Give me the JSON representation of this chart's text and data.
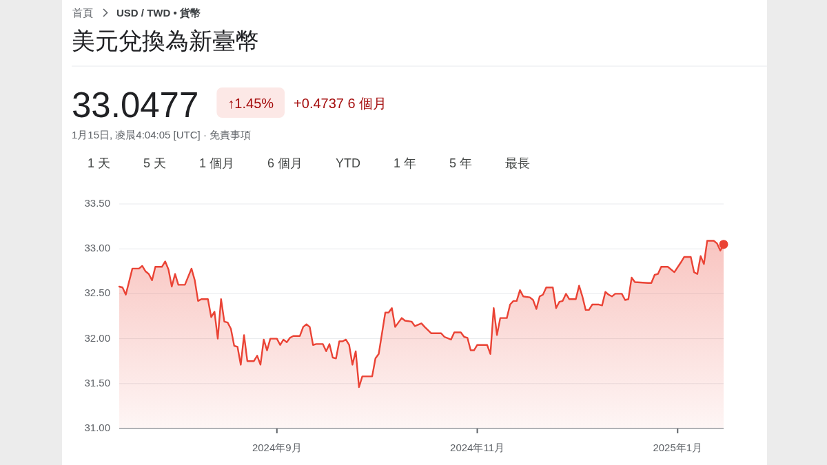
{
  "chart_data": {
    "type": "area",
    "title": "美元兌換為新臺幣",
    "subtitle": "33.0477",
    "annotations": [
      "首頁",
      "USD / TWD • 貨幣",
      "↑1.45%",
      "+0.4737 6 個月",
      "1月15日, 凌晨4:04:05 [UTC] · 免責事項",
      "1 天",
      "5 天",
      "1 個月",
      "6 個月",
      "YTD",
      "1 年",
      "5 年",
      "最長"
    ],
    "x": [
      "2024-07-15",
      "2024-07-16",
      "2024-07-17",
      "2024-07-19",
      "2024-07-21",
      "2024-07-22",
      "2024-07-23",
      "2024-07-24",
      "2024-07-25",
      "2024-07-26",
      "2024-07-28",
      "2024-07-29",
      "2024-07-30",
      "2024-07-31",
      "2024-08-01",
      "2024-08-02",
      "2024-08-04",
      "2024-08-06",
      "2024-08-07",
      "2024-08-08",
      "2024-08-09",
      "2024-08-11",
      "2024-08-12",
      "2024-08-13",
      "2024-08-14",
      "2024-08-15",
      "2024-08-16",
      "2024-08-17",
      "2024-08-18",
      "2024-08-19",
      "2024-08-20",
      "2024-08-21",
      "2024-08-22",
      "2024-08-23",
      "2024-08-25",
      "2024-08-26",
      "2024-08-27",
      "2024-08-28",
      "2024-08-29",
      "2024-08-30",
      "2024-09-01",
      "2024-09-02",
      "2024-09-03",
      "2024-09-04",
      "2024-09-05",
      "2024-09-06",
      "2024-09-08",
      "2024-09-09",
      "2024-09-10",
      "2024-09-11",
      "2024-09-12",
      "2024-09-13",
      "2024-09-15",
      "2024-09-16",
      "2024-09-17",
      "2024-09-18",
      "2024-09-19",
      "2024-09-20",
      "2024-09-21",
      "2024-09-22",
      "2024-09-23",
      "2024-09-24",
      "2024-09-25",
      "2024-09-26",
      "2024-09-27",
      "2024-09-30",
      "2024-10-01",
      "2024-10-02",
      "2024-10-04",
      "2024-10-05",
      "2024-10-06",
      "2024-10-07",
      "2024-10-09",
      "2024-10-10",
      "2024-10-12",
      "2024-10-13",
      "2024-10-15",
      "2024-10-16",
      "2024-10-18",
      "2024-10-21",
      "2024-10-22",
      "2024-10-24",
      "2024-10-25",
      "2024-10-27",
      "2024-10-28",
      "2024-10-29",
      "2024-10-30",
      "2024-10-31",
      "2024-11-01",
      "2024-11-04",
      "2024-11-05",
      "2024-11-06",
      "2024-11-07",
      "2024-11-08",
      "2024-11-10",
      "2024-11-11",
      "2024-11-12",
      "2024-11-13",
      "2024-11-14",
      "2024-11-15",
      "2024-11-17",
      "2024-11-18",
      "2024-11-19",
      "2024-11-20",
      "2024-11-21",
      "2024-11-22",
      "2024-11-24",
      "2024-11-25",
      "2024-11-26",
      "2024-11-27",
      "2024-11-28",
      "2024-11-29",
      "2024-12-01",
      "2024-12-02",
      "2024-12-03",
      "2024-12-04",
      "2024-12-05",
      "2024-12-06",
      "2024-12-08",
      "2024-12-09",
      "2024-12-10",
      "2024-12-11",
      "2024-12-12",
      "2024-12-13",
      "2024-12-15",
      "2024-12-16",
      "2024-12-17",
      "2024-12-18",
      "2024-12-19",
      "2024-12-23",
      "2024-12-24",
      "2024-12-25",
      "2024-12-26",
      "2024-12-27",
      "2024-12-29",
      "2024-12-31",
      "2025-01-02",
      "2025-01-03",
      "2025-01-05",
      "2025-01-06",
      "2025-01-07",
      "2025-01-08",
      "2025-01-09",
      "2025-01-10",
      "2025-01-12",
      "2025-01-13",
      "2025-01-14",
      "2025-01-15"
    ],
    "series": [
      {
        "color": "#ea4335",
        "values": [
          32.58,
          32.57,
          32.49,
          32.78,
          32.78,
          32.81,
          32.75,
          32.72,
          32.65,
          32.8,
          32.8,
          32.86,
          32.77,
          32.58,
          32.72,
          32.6,
          32.6,
          32.78,
          32.65,
          32.42,
          32.44,
          32.44,
          32.24,
          32.3,
          32.0,
          32.44,
          32.19,
          32.18,
          32.11,
          31.92,
          31.91,
          31.71,
          32.04,
          31.75,
          31.75,
          31.81,
          31.71,
          31.99,
          31.87,
          32.0,
          32.0,
          31.93,
          31.99,
          31.96,
          32.01,
          32.03,
          32.03,
          32.13,
          32.16,
          32.13,
          31.93,
          31.94,
          31.94,
          31.86,
          31.94,
          31.79,
          31.78,
          31.97,
          31.97,
          31.99,
          31.93,
          31.71,
          31.86,
          31.46,
          31.58,
          31.58,
          31.78,
          31.83,
          32.29,
          32.29,
          32.34,
          32.13,
          32.23,
          32.2,
          32.19,
          32.14,
          32.17,
          32.13,
          32.06,
          32.06,
          32.02,
          31.99,
          32.07,
          32.07,
          32.02,
          32.01,
          31.87,
          31.87,
          31.93,
          31.93,
          31.83,
          32.34,
          32.04,
          32.23,
          32.23,
          32.38,
          32.42,
          32.42,
          32.54,
          32.47,
          32.46,
          32.43,
          32.33,
          32.47,
          32.49,
          32.57,
          32.57,
          32.34,
          32.41,
          32.42,
          32.5,
          32.44,
          32.44,
          32.59,
          32.47,
          32.32,
          32.32,
          32.38,
          32.38,
          32.37,
          32.52,
          32.49,
          32.47,
          32.5,
          32.5,
          32.43,
          32.44,
          32.68,
          32.63,
          32.62,
          32.62,
          32.71,
          32.72,
          32.8,
          32.8,
          32.74,
          32.85,
          32.91,
          32.91,
          32.74,
          32.72,
          32.92,
          32.83,
          33.09,
          33.09,
          33.06,
          32.98,
          33.05
        ]
      },
      {
        "type": "scatter",
        "color": "#ea4335",
        "x": [
          "2025-01-15"
        ],
        "values": [
          33.05
        ]
      }
    ],
    "xlim": [
      "2024-07-15",
      "2025-01-15"
    ],
    "xticks": [
      {
        "value": "2024-09-01",
        "label": "2024年9月"
      },
      {
        "value": "2024-11-01",
        "label": "2024年11月"
      },
      {
        "value": "2025-01-01",
        "label": "2025年1月"
      }
    ],
    "ylim": [
      31,
      33.5
    ],
    "yticks": [
      {
        "value": 31,
        "label": "31.00"
      },
      {
        "value": 31.5,
        "label": "31.50"
      },
      {
        "value": 32,
        "label": "32.00"
      },
      {
        "value": 32.5,
        "label": "32.50"
      },
      {
        "value": 33,
        "label": "33.00"
      },
      {
        "value": 33.5,
        "label": "33.50"
      }
    ],
    "grid": "y"
  }
}
